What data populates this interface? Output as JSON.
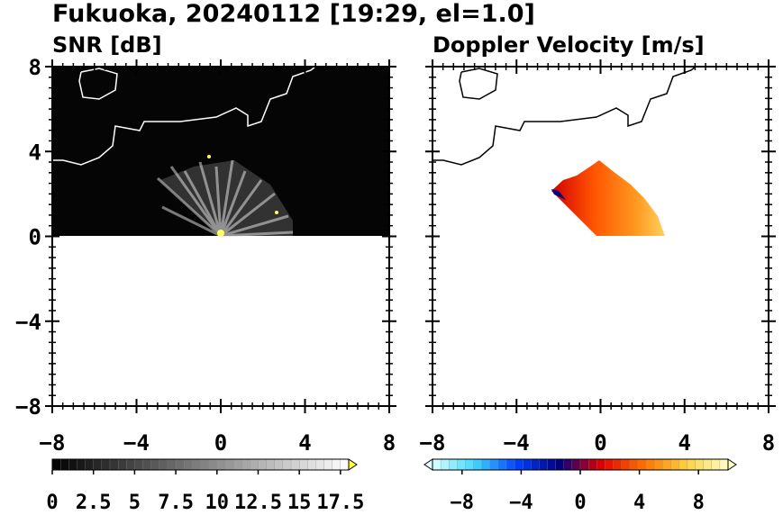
{
  "title": "Fukuoka, 20240112 [19:29, el=1.0]",
  "chart_data": [
    {
      "type": "heatmap",
      "title": "SNR [dB]",
      "xlim": [
        -8,
        8
      ],
      "ylim": [
        -8,
        8
      ],
      "xticks": [
        {
          "value": -8,
          "label": "−8"
        },
        {
          "value": -4,
          "label": "−4"
        },
        0,
        4,
        8
      ],
      "yticks": [
        {
          "value": -8,
          "label": "−8"
        },
        {
          "value": -4,
          "label": "−4"
        },
        0,
        4,
        8
      ],
      "colorbar": {
        "lim": [
          0,
          18
        ],
        "ticks": [
          0,
          2.5,
          5,
          7.5,
          10,
          12.5,
          15,
          17.5
        ],
        "cmap": [
          "#000000",
          "#ffffff"
        ],
        "extend": "max",
        "over_color": "#ffff40"
      }
    },
    {
      "type": "heatmap",
      "title": "Doppler Velocity [m/s]",
      "xlim": [
        -8,
        8
      ],
      "ylim": [
        -8,
        8
      ],
      "xticks": [
        {
          "value": -8,
          "label": "−8"
        },
        {
          "value": -4,
          "label": "−4"
        },
        0,
        4,
        8
      ],
      "yticks": [
        {
          "value": -8,
          "label": "−8"
        },
        {
          "value": -4,
          "label": "−4"
        },
        0,
        4,
        8
      ],
      "colorbar": {
        "lim": [
          -10,
          10
        ],
        "ticks": [
          {
            "value": -8,
            "label": "−8"
          },
          {
            "value": -4,
            "label": "−4"
          },
          0,
          4,
          8
        ],
        "cmap": [
          "#e0ffff",
          "#40d8ff",
          "#0040ff",
          "#000080",
          "#e00000",
          "#ff7000",
          "#ffd040",
          "#ffffc8"
        ],
        "extend": "both",
        "under_color": "#e0ffff",
        "over_color": "#ffffc8"
      }
    }
  ]
}
